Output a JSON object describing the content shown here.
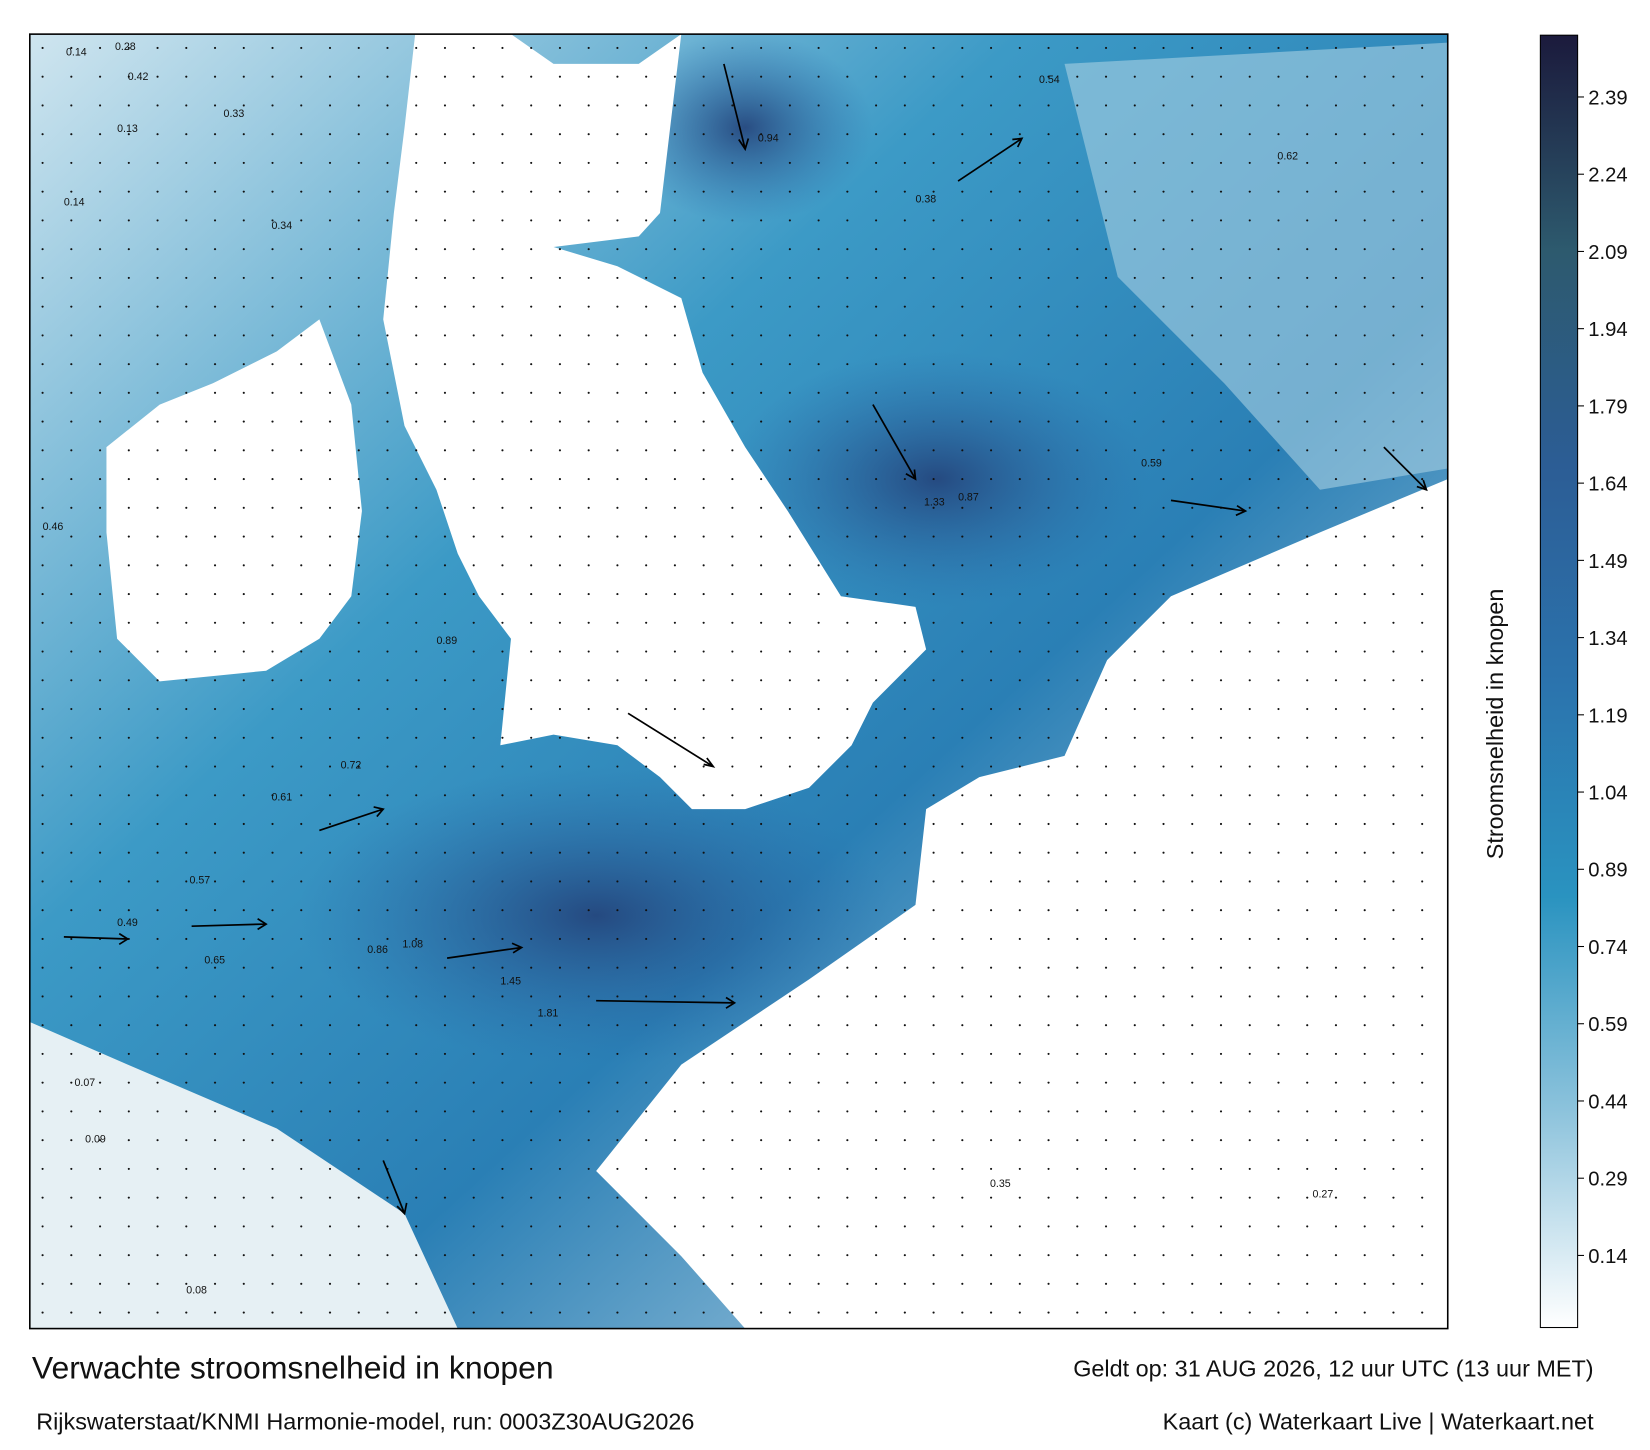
{
  "title": "Verwachte stroomsnelheid in knopen",
  "subtitle": "Rijkswaterstaat/KNMI Harmonie-model, run: 0003Z30AUG2026",
  "valid_time": "Geldt op: 31 AUG 2026, 12 uur UTC (13 uur MET)",
  "credit": "Kaart (c) Waterkaart Live | Waterkaart.net",
  "colorbar": {
    "label": "Stroomsnelheid in knopen",
    "lim": [
      0,
      2.51
    ],
    "ticks": [
      0.14,
      0.29,
      0.44,
      0.59,
      0.74,
      0.89,
      1.04,
      1.19,
      1.34,
      1.49,
      1.64,
      1.79,
      1.94,
      2.09,
      2.24,
      2.39
    ],
    "colors": [
      "#ffffff",
      "#8dc3dc",
      "#2a93c0",
      "#2b73ad",
      "#2c5d95",
      "#2d5a6e",
      "#1b1a3c"
    ]
  },
  "map": {
    "labels": [
      "0.14",
      "0.28",
      "0.42",
      "0.33",
      "0.13",
      "0.14",
      "0.46",
      "0.34",
      "0.61",
      "0.72",
      "0.86",
      "1.08",
      "1.45",
      "1.81",
      "0.65",
      "0.57",
      "0.49",
      "0.07",
      "0.09",
      "0.08",
      "0.89",
      "0.94",
      "0.54",
      "0.38",
      "0.62",
      "1.33",
      "0.87",
      "0.59",
      "0.35",
      "0.27"
    ]
  }
}
